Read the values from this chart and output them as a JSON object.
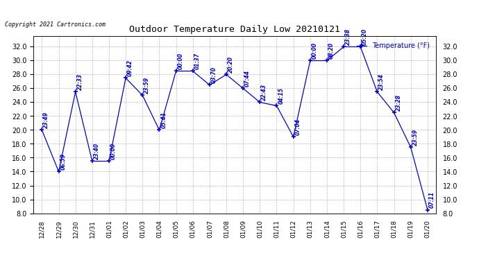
{
  "title": "Outdoor Temperature Daily Low 20210121",
  "copyright": "Copyright 2021 Cartronics.com",
  "background_color": "#ffffff",
  "line_color": "#0000cc",
  "grid_color": "#999999",
  "x_labels": [
    "12/28",
    "12/29",
    "12/30",
    "12/31",
    "01/01",
    "01/02",
    "01/03",
    "01/04",
    "01/05",
    "01/06",
    "01/07",
    "01/08",
    "01/09",
    "01/10",
    "01/11",
    "01/12",
    "01/13",
    "01/14",
    "01/15",
    "01/16",
    "01/17",
    "01/18",
    "01/19",
    "01/20"
  ],
  "y_values": [
    20.0,
    14.0,
    25.5,
    15.5,
    15.5,
    27.5,
    25.0,
    20.0,
    28.5,
    28.5,
    26.5,
    28.0,
    26.0,
    24.0,
    23.5,
    19.0,
    30.0,
    30.0,
    32.0,
    32.0,
    25.5,
    22.5,
    17.5,
    8.5
  ],
  "time_labels": [
    "23:49",
    "06:59",
    "22:33",
    "23:40",
    "00:00",
    "09:42",
    "23:59",
    "05:41",
    "00:00",
    "01:37",
    "03:70",
    "20:20",
    "07:44",
    "22:43",
    "04:15",
    "07:04",
    "00:00",
    "08:20",
    "23:38",
    "05:20",
    "23:54",
    "23:28",
    "23:59",
    "07:11"
  ],
  "ylim": [
    8.0,
    33.5
  ],
  "yticks": [
    8.0,
    10.0,
    12.0,
    14.0,
    16.0,
    18.0,
    20.0,
    22.0,
    24.0,
    26.0,
    28.0,
    30.0,
    32.0
  ],
  "legend_text": "Temperature (°F)"
}
